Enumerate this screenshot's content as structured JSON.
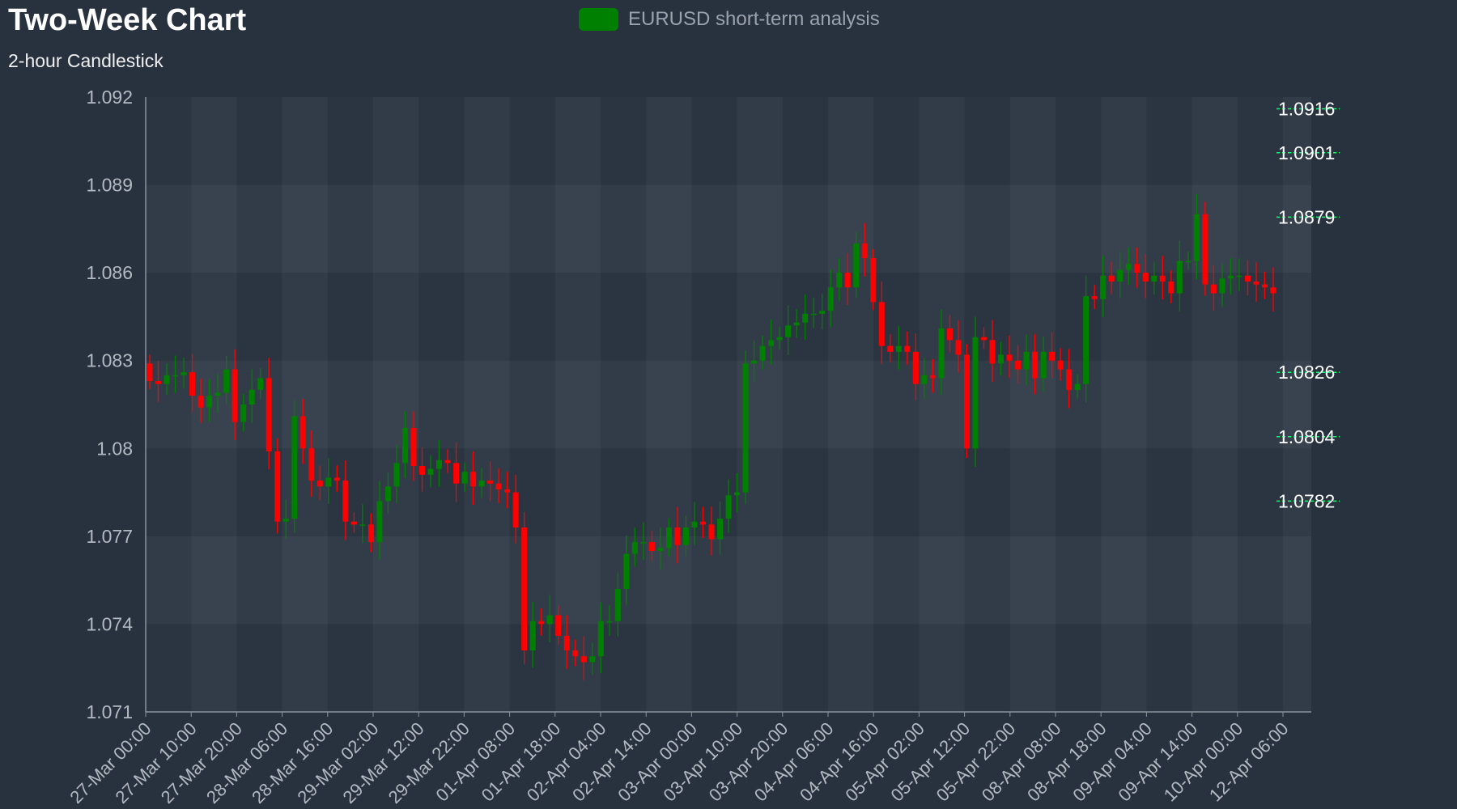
{
  "title": "Two-Week Chart",
  "subtitle": "2-hour Candlestick",
  "legend": {
    "label": "EURUSD short-term analysis",
    "color": "#008000"
  },
  "colors": {
    "up": "#008000",
    "down": "#ff0000",
    "level": "#00ff66"
  },
  "chart_data": {
    "type": "candlestick",
    "series_name": "EURUSD short-term analysis",
    "interval": "2 hours",
    "y_ticks": [
      "1.071",
      "1.074",
      "1.077",
      "1.08",
      "1.083",
      "1.086",
      "1.089",
      "1.092"
    ],
    "ylim": [
      1.071,
      1.092
    ],
    "x_tick_labels": [
      "27-Mar 00:00",
      "27-Mar 10:00",
      "27-Mar 20:00",
      "28-Mar 06:00",
      "28-Mar 16:00",
      "29-Mar 02:00",
      "29-Mar 12:00",
      "29-Mar 22:00",
      "01-Apr 08:00",
      "01-Apr 18:00",
      "02-Apr 04:00",
      "02-Apr 14:00",
      "03-Apr 00:00",
      "03-Apr 10:00",
      "03-Apr 20:00",
      "04-Apr 06:00",
      "04-Apr 16:00",
      "05-Apr 02:00",
      "05-Apr 12:00",
      "05-Apr 22:00",
      "08-Apr 08:00",
      "08-Apr 18:00",
      "09-Apr 04:00",
      "09-Apr 14:00",
      "10-Apr 00:00",
      "12-Apr 06:00"
    ],
    "levels": [
      "1.0916",
      "1.0901",
      "1.0879",
      "1.0826",
      "1.0804",
      "1.0782"
    ],
    "close": [
      1.0823,
      1.0822,
      1.0825,
      1.0825,
      1.0826,
      1.0818,
      1.0814,
      1.0818,
      1.0819,
      1.0827,
      1.0809,
      1.0815,
      1.082,
      1.0824,
      1.0799,
      1.0775,
      1.0776,
      1.0811,
      1.08,
      1.0789,
      1.0787,
      1.079,
      1.0789,
      1.0775,
      1.0774,
      1.0774,
      1.0768,
      1.0782,
      1.0787,
      1.0795,
      1.0807,
      1.0794,
      1.0791,
      1.0793,
      1.0796,
      1.0795,
      1.0788,
      1.0792,
      1.0787,
      1.0789,
      1.0788,
      1.0786,
      1.0785,
      1.0773,
      1.0731,
      1.0741,
      1.074,
      1.0743,
      1.0736,
      1.0731,
      1.0729,
      1.0727,
      1.0729,
      1.0741,
      1.0741,
      1.0752,
      1.0764,
      1.0768,
      1.0768,
      1.0765,
      1.0766,
      1.0773,
      1.0767,
      1.0773,
      1.0775,
      1.0774,
      1.0769,
      1.0776,
      1.0784,
      1.0785,
      1.0829,
      1.083,
      1.0835,
      1.0837,
      1.0838,
      1.0842,
      1.0843,
      1.0846,
      1.0846,
      1.0847,
      1.0855,
      1.086,
      1.0855,
      1.087,
      1.0865,
      1.085,
      1.0835,
      1.0833,
      1.0835,
      1.0833,
      1.0822,
      1.0825,
      1.0824,
      1.0841,
      1.0837,
      1.0832,
      1.08,
      1.0838,
      1.0837,
      1.0829,
      1.0832,
      1.083,
      1.0827,
      1.0833,
      1.0824,
      1.0833,
      1.083,
      1.0827,
      1.082,
      1.0822,
      1.0852,
      1.0851,
      1.0859,
      1.0857,
      1.0861,
      1.0863,
      1.086,
      1.0857,
      1.0859,
      1.0857,
      1.0853,
      1.0864,
      1.0864,
      1.088,
      1.0856,
      1.0853,
      1.0858,
      1.0859,
      1.0859,
      1.0857,
      1.0856,
      1.0855,
      1.0853
    ]
  }
}
